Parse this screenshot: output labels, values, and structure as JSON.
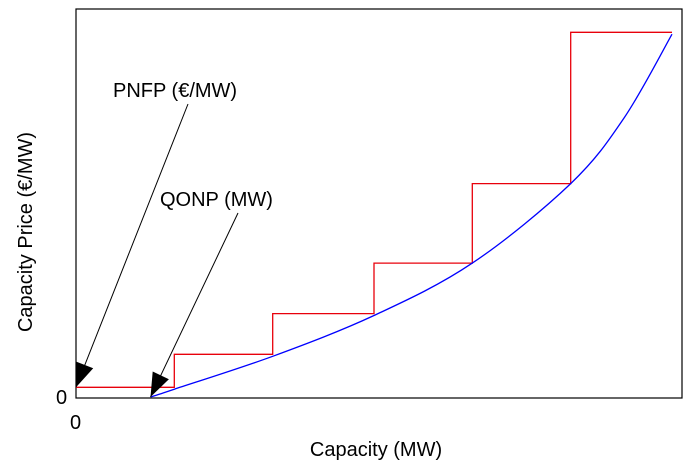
{
  "chart_data": {
    "type": "line",
    "title": "",
    "xlabel": "Capacity (MW)",
    "ylabel": "Capacity Price (€/MW)",
    "x_tick_labels": [
      "0"
    ],
    "y_tick_labels": [
      "0"
    ],
    "xlim": [
      0,
      100
    ],
    "ylim": [
      0,
      100
    ],
    "grid": false,
    "legend": "none",
    "series": [
      {
        "style": "step",
        "color": "#e8000b",
        "x": [
          0,
          16.5,
          16.5,
          33,
          33,
          50,
          50,
          66.5,
          66.5,
          83,
          83,
          100
        ],
        "y": [
          2.5,
          2.5,
          11,
          11,
          21.5,
          21.5,
          34.5,
          34.5,
          55,
          55,
          94,
          94
        ]
      },
      {
        "style": "curve",
        "color": "#0000ff",
        "x": [
          12.5,
          16.5,
          33,
          50,
          66.5,
          83,
          92,
          100
        ],
        "y": [
          0,
          2,
          10.5,
          21,
          34.5,
          55,
          72,
          93.5
        ]
      }
    ],
    "annotations": [
      {
        "text": "PNFP (€/MW)",
        "points_to": [
          0,
          2.5
        ]
      },
      {
        "text": "QONP (MW)",
        "points_to": [
          12.5,
          0
        ]
      }
    ]
  }
}
